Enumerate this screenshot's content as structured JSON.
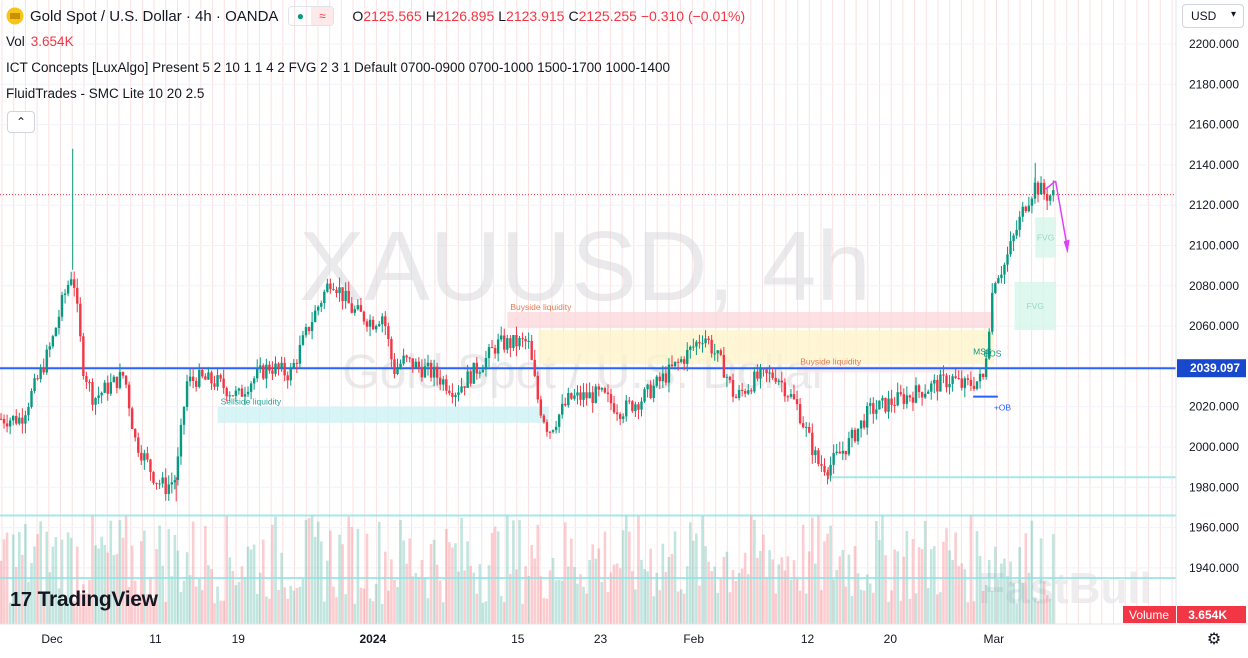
{
  "header": {
    "symbol_title": "Gold Spot / U.S. Dollar · 4h · OANDA",
    "badge_market": "●",
    "badge_chart": "≈",
    "ohlc": [
      {
        "key": "O",
        "value": "2125.565"
      },
      {
        "key": "H",
        "value": "2126.895"
      },
      {
        "key": "L",
        "value": "2123.915"
      },
      {
        "key": "C",
        "value": "2125.255 −0.310 (−0.01%)"
      }
    ]
  },
  "indicators": {
    "vol_label": "Vol",
    "vol_value": "3.654K",
    "ict": "ICT Concepts [LuxAlgo] Present 5 2 10 1 1 4 2 FVG 2 3 1 Default 0700-0900 0700-1000 1500-1700 1000-1400",
    "fluid": "FluidTrades - SMC Lite 10 20 2.5"
  },
  "controls": {
    "collapse_icon": "chevron-up-icon",
    "collapse_glyph": "⌃",
    "currency": "USD",
    "currency_arrow": "▾",
    "settings_glyph": "⚙"
  },
  "branding": {
    "logo_mark": "17",
    "logo_text": "TradingView",
    "watermark_symbol": "XAUUSD, 4h",
    "watermark_name": "Gold Spot / U.S. Dollar",
    "watermark_source": "FastBull"
  },
  "colors": {
    "up": "#089981",
    "down": "#f23645",
    "hline": "#2962ff",
    "last_price_line": "#f23645",
    "price_label_bg": "#1848cc"
  },
  "chart_data": {
    "type": "candlestick",
    "symbol": "XAUUSD",
    "timeframe": "4h",
    "ylim": [
      1928,
      2210
    ],
    "y_ticks": [
      2200,
      2180,
      2160,
      2140,
      2120,
      2100,
      2080,
      2060,
      2040,
      2020,
      2000,
      1980,
      1960,
      1940
    ],
    "y_tick_labels": [
      "2200.000",
      "2180.000",
      "2160.000",
      "2140.000",
      "2120.000",
      "2100.000",
      "2080.000",
      "2060.000",
      "2040.000",
      "2020.000",
      "2000.000",
      "1980.000",
      "1960.000",
      "1940.000"
    ],
    "x_labels": [
      {
        "label": "Dec",
        "date": "2023-12-01"
      },
      {
        "label": "11",
        "date": "2023-12-11"
      },
      {
        "label": "19",
        "date": "2023-12-19"
      },
      {
        "label": "2024",
        "date": "2024-01-01"
      },
      {
        "label": "15",
        "date": "2024-01-15"
      },
      {
        "label": "23",
        "date": "2024-01-23"
      },
      {
        "label": "Feb",
        "date": "2024-02-01"
      },
      {
        "label": "12",
        "date": "2024-02-12"
      },
      {
        "label": "20",
        "date": "2024-02-20"
      },
      {
        "label": "Mar",
        "date": "2024-03-01"
      }
    ],
    "close_path": [
      {
        "date": "2023-11-28",
        "close": 2014
      },
      {
        "date": "2023-11-30",
        "close": 2038
      },
      {
        "date": "2023-12-01",
        "close": 2052
      },
      {
        "date": "2023-12-02",
        "close": 2072
      },
      {
        "date": "2023-12-03",
        "close": 2088
      },
      {
        "date": "2023-12-04",
        "close": 2040
      },
      {
        "date": "2023-12-05",
        "close": 2024
      },
      {
        "date": "2023-12-07",
        "close": 2032
      },
      {
        "date": "2023-12-08",
        "close": 2036
      },
      {
        "date": "2023-12-09",
        "close": 2004
      },
      {
        "date": "2023-12-11",
        "close": 1984
      },
      {
        "date": "2023-12-12",
        "close": 1980
      },
      {
        "date": "2023-12-13",
        "close": 1985
      },
      {
        "date": "2023-12-14",
        "close": 2032
      },
      {
        "date": "2023-12-15",
        "close": 2034
      },
      {
        "date": "2023-12-17",
        "close": 2032
      },
      {
        "date": "2023-12-19",
        "close": 2025
      },
      {
        "date": "2023-12-20",
        "close": 2032
      },
      {
        "date": "2023-12-22",
        "close": 2040
      },
      {
        "date": "2023-12-24",
        "close": 2036
      },
      {
        "date": "2023-12-26",
        "close": 2062
      },
      {
        "date": "2023-12-28",
        "close": 2084
      },
      {
        "date": "2023-12-30",
        "close": 2068
      },
      {
        "date": "2024-01-01",
        "close": 2062
      },
      {
        "date": "2024-01-02",
        "close": 2066
      },
      {
        "date": "2024-01-03",
        "close": 2038
      },
      {
        "date": "2024-01-04",
        "close": 2043
      },
      {
        "date": "2024-01-07",
        "close": 2036
      },
      {
        "date": "2024-01-09",
        "close": 2028
      },
      {
        "date": "2024-01-12",
        "close": 2044
      },
      {
        "date": "2024-01-13",
        "close": 2051
      },
      {
        "date": "2024-01-16",
        "close": 2052
      },
      {
        "date": "2024-01-17",
        "close": 2022
      },
      {
        "date": "2024-01-18",
        "close": 2008
      },
      {
        "date": "2024-01-20",
        "close": 2024
      },
      {
        "date": "2024-01-23",
        "close": 2026
      },
      {
        "date": "2024-01-25",
        "close": 2018
      },
      {
        "date": "2024-01-27",
        "close": 2024
      },
      {
        "date": "2024-01-29",
        "close": 2034
      },
      {
        "date": "2024-01-31",
        "close": 2044
      },
      {
        "date": "2024-02-02",
        "close": 2056
      },
      {
        "date": "2024-02-04",
        "close": 2038
      },
      {
        "date": "2024-02-05",
        "close": 2024
      },
      {
        "date": "2024-02-07",
        "close": 2034
      },
      {
        "date": "2024-02-09",
        "close": 2036
      },
      {
        "date": "2024-02-10",
        "close": 2028
      },
      {
        "date": "2024-02-11",
        "close": 2020
      },
      {
        "date": "2024-02-13",
        "close": 1992
      },
      {
        "date": "2024-02-14",
        "close": 1990
      },
      {
        "date": "2024-02-16",
        "close": 2002
      },
      {
        "date": "2024-02-18",
        "close": 2018
      },
      {
        "date": "2024-02-20",
        "close": 2022
      },
      {
        "date": "2024-02-22",
        "close": 2026
      },
      {
        "date": "2024-02-24",
        "close": 2030
      },
      {
        "date": "2024-02-26",
        "close": 2034
      },
      {
        "date": "2024-02-27",
        "close": 2030
      },
      {
        "date": "2024-02-29",
        "close": 2034
      },
      {
        "date": "2024-03-01",
        "close": 2084
      },
      {
        "date": "2024-03-02",
        "close": 2090
      },
      {
        "date": "2024-03-04",
        "close": 2120
      },
      {
        "date": "2024-03-05",
        "close": 2130
      },
      {
        "date": "2024-03-06",
        "close": 2125
      }
    ],
    "wicks": [
      {
        "date": "2023-12-03",
        "high": 2148
      },
      {
        "date": "2023-12-13",
        "low": 1973
      },
      {
        "date": "2024-02-14",
        "low": 1984
      },
      {
        "date": "2024-03-05",
        "high": 2141
      }
    ],
    "horizontal_lines": [
      {
        "name": "blue-level",
        "price": 2039.097
      },
      {
        "name": "last-price",
        "price": 2125.255
      }
    ],
    "price_label": "2039.097",
    "zones": [
      {
        "kind": "buyside",
        "label": "Buyside liquidity",
        "top": 2067,
        "bottom": 2059,
        "from": "2024-01-14",
        "to": "2024-03-01"
      },
      {
        "kind": "buyside-fill",
        "label": "",
        "top": 2058,
        "bottom": 2041,
        "from": "2024-01-17",
        "to": "2024-03-01"
      },
      {
        "kind": "buyside-2",
        "label": "Buyside liquidity",
        "top": 2040,
        "bottom": 2037,
        "from": "2024-02-11",
        "to": "2024-02-28"
      },
      {
        "kind": "sellside",
        "label": "Sellside liquidity",
        "top": 2020,
        "bottom": 2012,
        "from": "2023-12-17",
        "to": "2024-01-18"
      },
      {
        "kind": "fvg",
        "label": "FVG",
        "top": 2114,
        "bottom": 2094,
        "from": "2024-03-05",
        "to": "2024-03-07"
      },
      {
        "kind": "fvg",
        "label": "FVG",
        "top": 2082,
        "bottom": 2058,
        "from": "2024-03-03",
        "to": "2024-03-07"
      }
    ],
    "marks": [
      {
        "label": "MSS",
        "price": 2046,
        "date": "2024-02-28"
      },
      {
        "label": "BOS",
        "price": 2045,
        "date": "2024-02-29"
      },
      {
        "label": "+OB",
        "price": 2018,
        "date": "2024-03-01"
      }
    ],
    "volume": {
      "label": "Volume",
      "value": "3.654K"
    }
  }
}
